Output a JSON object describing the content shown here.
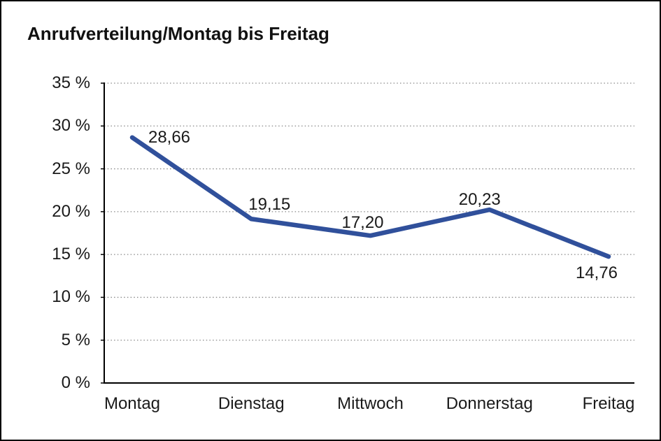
{
  "chart_data": {
    "type": "line",
    "title": "Anrufverteilung/Montag bis Freitag",
    "categories": [
      "Montag",
      "Dienstag",
      "Mittwoch",
      "Donnerstag",
      "Freitag"
    ],
    "values": [
      28.66,
      19.15,
      17.2,
      20.23,
      14.76
    ],
    "value_labels": [
      "28,66",
      "19,15",
      "17,20",
      "20,23",
      "14,76"
    ],
    "xlabel": "",
    "ylabel": "",
    "ylim": [
      0,
      35
    ],
    "y_tick_step": 5,
    "y_ticks": [
      {
        "value": 35,
        "label": "35 %"
      },
      {
        "value": 30,
        "label": "30 %"
      },
      {
        "value": 25,
        "label": "25 %"
      },
      {
        "value": 20,
        "label": "20 %"
      },
      {
        "value": 15,
        "label": "15 %"
      },
      {
        "value": 10,
        "label": "10 %"
      },
      {
        "value": 5,
        "label": "5 %"
      },
      {
        "value": 0,
        "label": "0 %"
      }
    ],
    "grid": "horizontal-dotted",
    "legend": "none",
    "colors": {
      "line": "#30509B",
      "axis": "#000000",
      "gridline": "#888888",
      "text": "#1a1a1a",
      "background": "#ffffff",
      "border": "#000000"
    }
  }
}
